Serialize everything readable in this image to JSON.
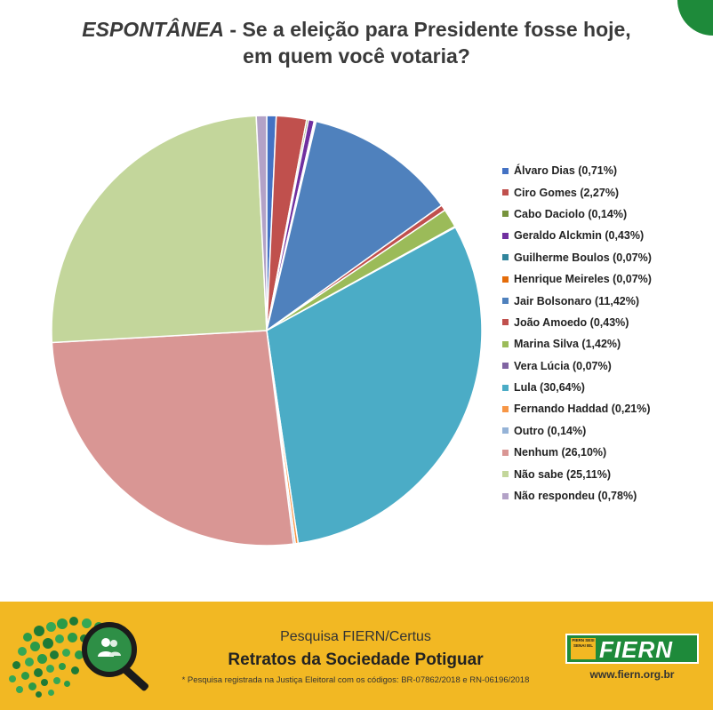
{
  "title": {
    "italic_part": "ESPONTÂNEA",
    "rest_line1": " - Se a eleição para Presidente fosse hoje,",
    "line2": "em quem  você votaria?"
  },
  "chart_data": {
    "type": "pie",
    "title": "ESPONTÂNEA - Se a eleição para Presidente fosse hoje, em quem você votaria?",
    "legend_position": "right",
    "slices": [
      {
        "label": "Álvaro Dias (0,71%)",
        "value": 0.71,
        "color": "#4472c4"
      },
      {
        "label": "Ciro Gomes (2,27%)",
        "value": 2.27,
        "color": "#c0504d"
      },
      {
        "label": "Cabo Daciolo (0,14%)",
        "value": 0.14,
        "color": "#77933c"
      },
      {
        "label": "Geraldo Alckmin (0,43%)",
        "value": 0.43,
        "color": "#7030a0"
      },
      {
        "label": "Guilherme Boulos (0,07%)",
        "value": 0.07,
        "color": "#31859c"
      },
      {
        "label": "Henrique Meireles (0,07%)",
        "value": 0.07,
        "color": "#e46c0a"
      },
      {
        "label": "Jair Bolsonaro (11,42%)",
        "value": 11.42,
        "color": "#4f81bd"
      },
      {
        "label": "João Amoedo (0,43%)",
        "value": 0.43,
        "color": "#c0504d"
      },
      {
        "label": "Marina Silva (1,42%)",
        "value": 1.42,
        "color": "#9bbb59"
      },
      {
        "label": "Vera Lúcia (0,07%)",
        "value": 0.07,
        "color": "#8064a2"
      },
      {
        "label": "Lula (30,64%)",
        "value": 30.64,
        "color": "#4bacc6"
      },
      {
        "label": "Fernando Haddad (0,21%)",
        "value": 0.21,
        "color": "#f79646"
      },
      {
        "label": "Outro (0,14%)",
        "value": 0.14,
        "color": "#95b3d7"
      },
      {
        "label": "Nenhum (26,10%)",
        "value": 26.1,
        "color": "#d99694"
      },
      {
        "label": "Não sabe (25,11%)",
        "value": 25.11,
        "color": "#c3d69b"
      },
      {
        "label": "Não respondeu (0,78%)",
        "value": 0.78,
        "color": "#b3a2c7"
      }
    ]
  },
  "footer": {
    "survey_label": "Pesquisa FIERN/Certus",
    "series_title": "Retratos da Sociedade Potiguar",
    "note": "* Pesquisa registrada na Justiça Eleitoral com os códigos: BR-07862/2018 e RN-06196/2018",
    "brand": "FIERN",
    "brand_mini": "FIERN SESI SENAI IEL",
    "url": "www.fiern.org.br"
  },
  "icons": {
    "magnifier": "magnifier-icon",
    "people": "people-icon",
    "map_dots": "map-dots-icon"
  }
}
